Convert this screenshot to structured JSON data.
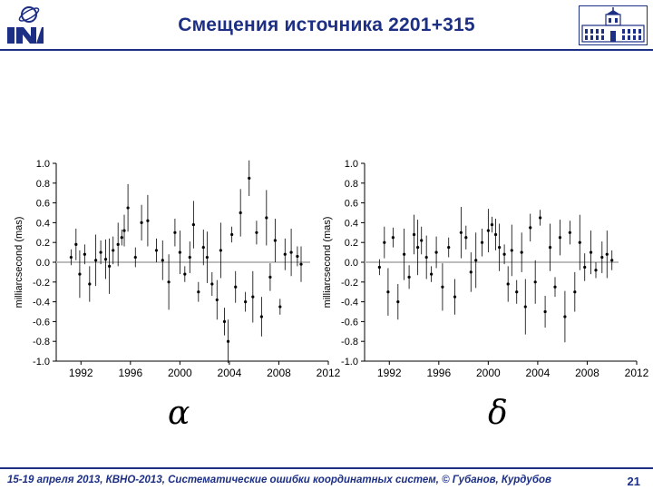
{
  "slide": {
    "title": "Смещения источника 2201+315",
    "footer_text": "15-19 апреля 2013, КВНО-2013, Систематические ошибки координатных систем, © Губанов, Курдубов",
    "page_number": "21"
  },
  "colors": {
    "brand_blue": "#1c2f84",
    "zero_line": "#bdbdbd",
    "data": "#000000"
  },
  "chart_data": [
    {
      "type": "scatter",
      "ylabel": "milliarcsecond (mas)",
      "xlabel": "",
      "x_ticks": [
        "1992",
        "1996",
        "2000",
        "2004",
        "2008",
        "2012"
      ],
      "y_ticks": [
        "1.0",
        "0.8",
        "0.6",
        "0.4",
        "0.2",
        "0.0",
        "-0.2",
        "-0.4",
        "-0.6",
        "-0.8",
        "-1.0"
      ],
      "xlim": [
        1990,
        2012
      ],
      "ylim": [
        -1.0,
        1.0
      ],
      "symbol": "α",
      "series": [
        {
          "values": [
            [
              1991.2,
              0.05
            ],
            [
              1991.6,
              0.18
            ],
            [
              1991.9,
              -0.12
            ],
            [
              1992.3,
              0.08
            ],
            [
              1992.7,
              -0.22
            ],
            [
              1993.2,
              0.02
            ],
            [
              1993.6,
              0.1
            ],
            [
              1994.0,
              0.03
            ],
            [
              1994.3,
              -0.04
            ],
            [
              1994.6,
              0.12
            ],
            [
              1995.0,
              0.18
            ],
            [
              1995.3,
              0.25
            ],
            [
              1995.5,
              0.32
            ],
            [
              1995.8,
              0.55
            ],
            [
              1996.4,
              0.05
            ],
            [
              1996.9,
              0.4
            ],
            [
              1997.4,
              0.42
            ],
            [
              1998.1,
              0.12
            ],
            [
              1998.6,
              0.02
            ],
            [
              1999.1,
              -0.2
            ],
            [
              1999.6,
              0.3
            ],
            [
              2000.0,
              0.1
            ],
            [
              2000.4,
              -0.12
            ],
            [
              2000.8,
              0.05
            ],
            [
              2001.1,
              0.38
            ],
            [
              2001.5,
              -0.3
            ],
            [
              2001.9,
              0.15
            ],
            [
              2002.2,
              0.05
            ],
            [
              2002.6,
              -0.22
            ],
            [
              2003.0,
              -0.38
            ],
            [
              2003.3,
              0.12
            ],
            [
              2003.6,
              -0.6
            ],
            [
              2003.9,
              -0.8
            ],
            [
              2004.2,
              0.28
            ],
            [
              2004.5,
              -0.25
            ],
            [
              2004.9,
              0.5
            ],
            [
              2005.3,
              -0.4
            ],
            [
              2005.6,
              0.85
            ],
            [
              2005.9,
              -0.35
            ],
            [
              2006.2,
              0.3
            ],
            [
              2006.6,
              -0.55
            ],
            [
              2007.0,
              0.45
            ],
            [
              2007.3,
              -0.15
            ],
            [
              2007.7,
              0.22
            ],
            [
              2008.1,
              -0.45
            ],
            [
              2008.5,
              0.08
            ],
            [
              2009.0,
              0.1
            ],
            [
              2009.5,
              0.06
            ],
            [
              2009.8,
              -0.02
            ]
          ]
        }
      ]
    },
    {
      "type": "scatter",
      "ylabel": "milliarcsecond (mas)",
      "xlabel": "",
      "x_ticks": [
        "1992",
        "1996",
        "2000",
        "2004",
        "2008",
        "2012"
      ],
      "y_ticks": [
        "1.0",
        "0.8",
        "0.6",
        "0.4",
        "0.2",
        "0.0",
        "-0.2",
        "-0.4",
        "-0.6",
        "-0.8",
        "-1.0"
      ],
      "xlim": [
        1990,
        2012
      ],
      "ylim": [
        -1.0,
        1.0
      ],
      "symbol": "δ",
      "series": [
        {
          "values": [
            [
              1991.2,
              -0.05
            ],
            [
              1991.6,
              0.2
            ],
            [
              1991.9,
              -0.3
            ],
            [
              1992.3,
              0.25
            ],
            [
              1992.7,
              -0.4
            ],
            [
              1993.2,
              0.08
            ],
            [
              1993.6,
              -0.15
            ],
            [
              1994.0,
              0.28
            ],
            [
              1994.3,
              0.15
            ],
            [
              1994.6,
              0.22
            ],
            [
              1995.0,
              0.05
            ],
            [
              1995.4,
              -0.12
            ],
            [
              1995.8,
              0.1
            ],
            [
              1996.3,
              -0.25
            ],
            [
              1996.8,
              0.15
            ],
            [
              1997.3,
              -0.35
            ],
            [
              1997.8,
              0.3
            ],
            [
              1998.2,
              0.25
            ],
            [
              1998.6,
              -0.1
            ],
            [
              1999.0,
              0.02
            ],
            [
              1999.5,
              0.2
            ],
            [
              2000.0,
              0.32
            ],
            [
              2000.3,
              0.38
            ],
            [
              2000.6,
              0.28
            ],
            [
              2000.9,
              0.15
            ],
            [
              2001.3,
              0.08
            ],
            [
              2001.6,
              -0.22
            ],
            [
              2001.9,
              0.12
            ],
            [
              2002.3,
              -0.3
            ],
            [
              2002.7,
              0.1
            ],
            [
              2003.0,
              -0.45
            ],
            [
              2003.4,
              0.35
            ],
            [
              2003.8,
              -0.2
            ],
            [
              2004.2,
              0.45
            ],
            [
              2004.6,
              -0.5
            ],
            [
              2005.0,
              0.15
            ],
            [
              2005.4,
              -0.25
            ],
            [
              2005.8,
              0.25
            ],
            [
              2006.2,
              -0.55
            ],
            [
              2006.6,
              0.3
            ],
            [
              2007.0,
              -0.3
            ],
            [
              2007.4,
              0.2
            ],
            [
              2007.8,
              -0.05
            ],
            [
              2008.3,
              0.1
            ],
            [
              2008.7,
              -0.08
            ],
            [
              2009.2,
              0.05
            ],
            [
              2009.6,
              0.08
            ],
            [
              2010.0,
              0.02
            ]
          ]
        }
      ]
    }
  ]
}
